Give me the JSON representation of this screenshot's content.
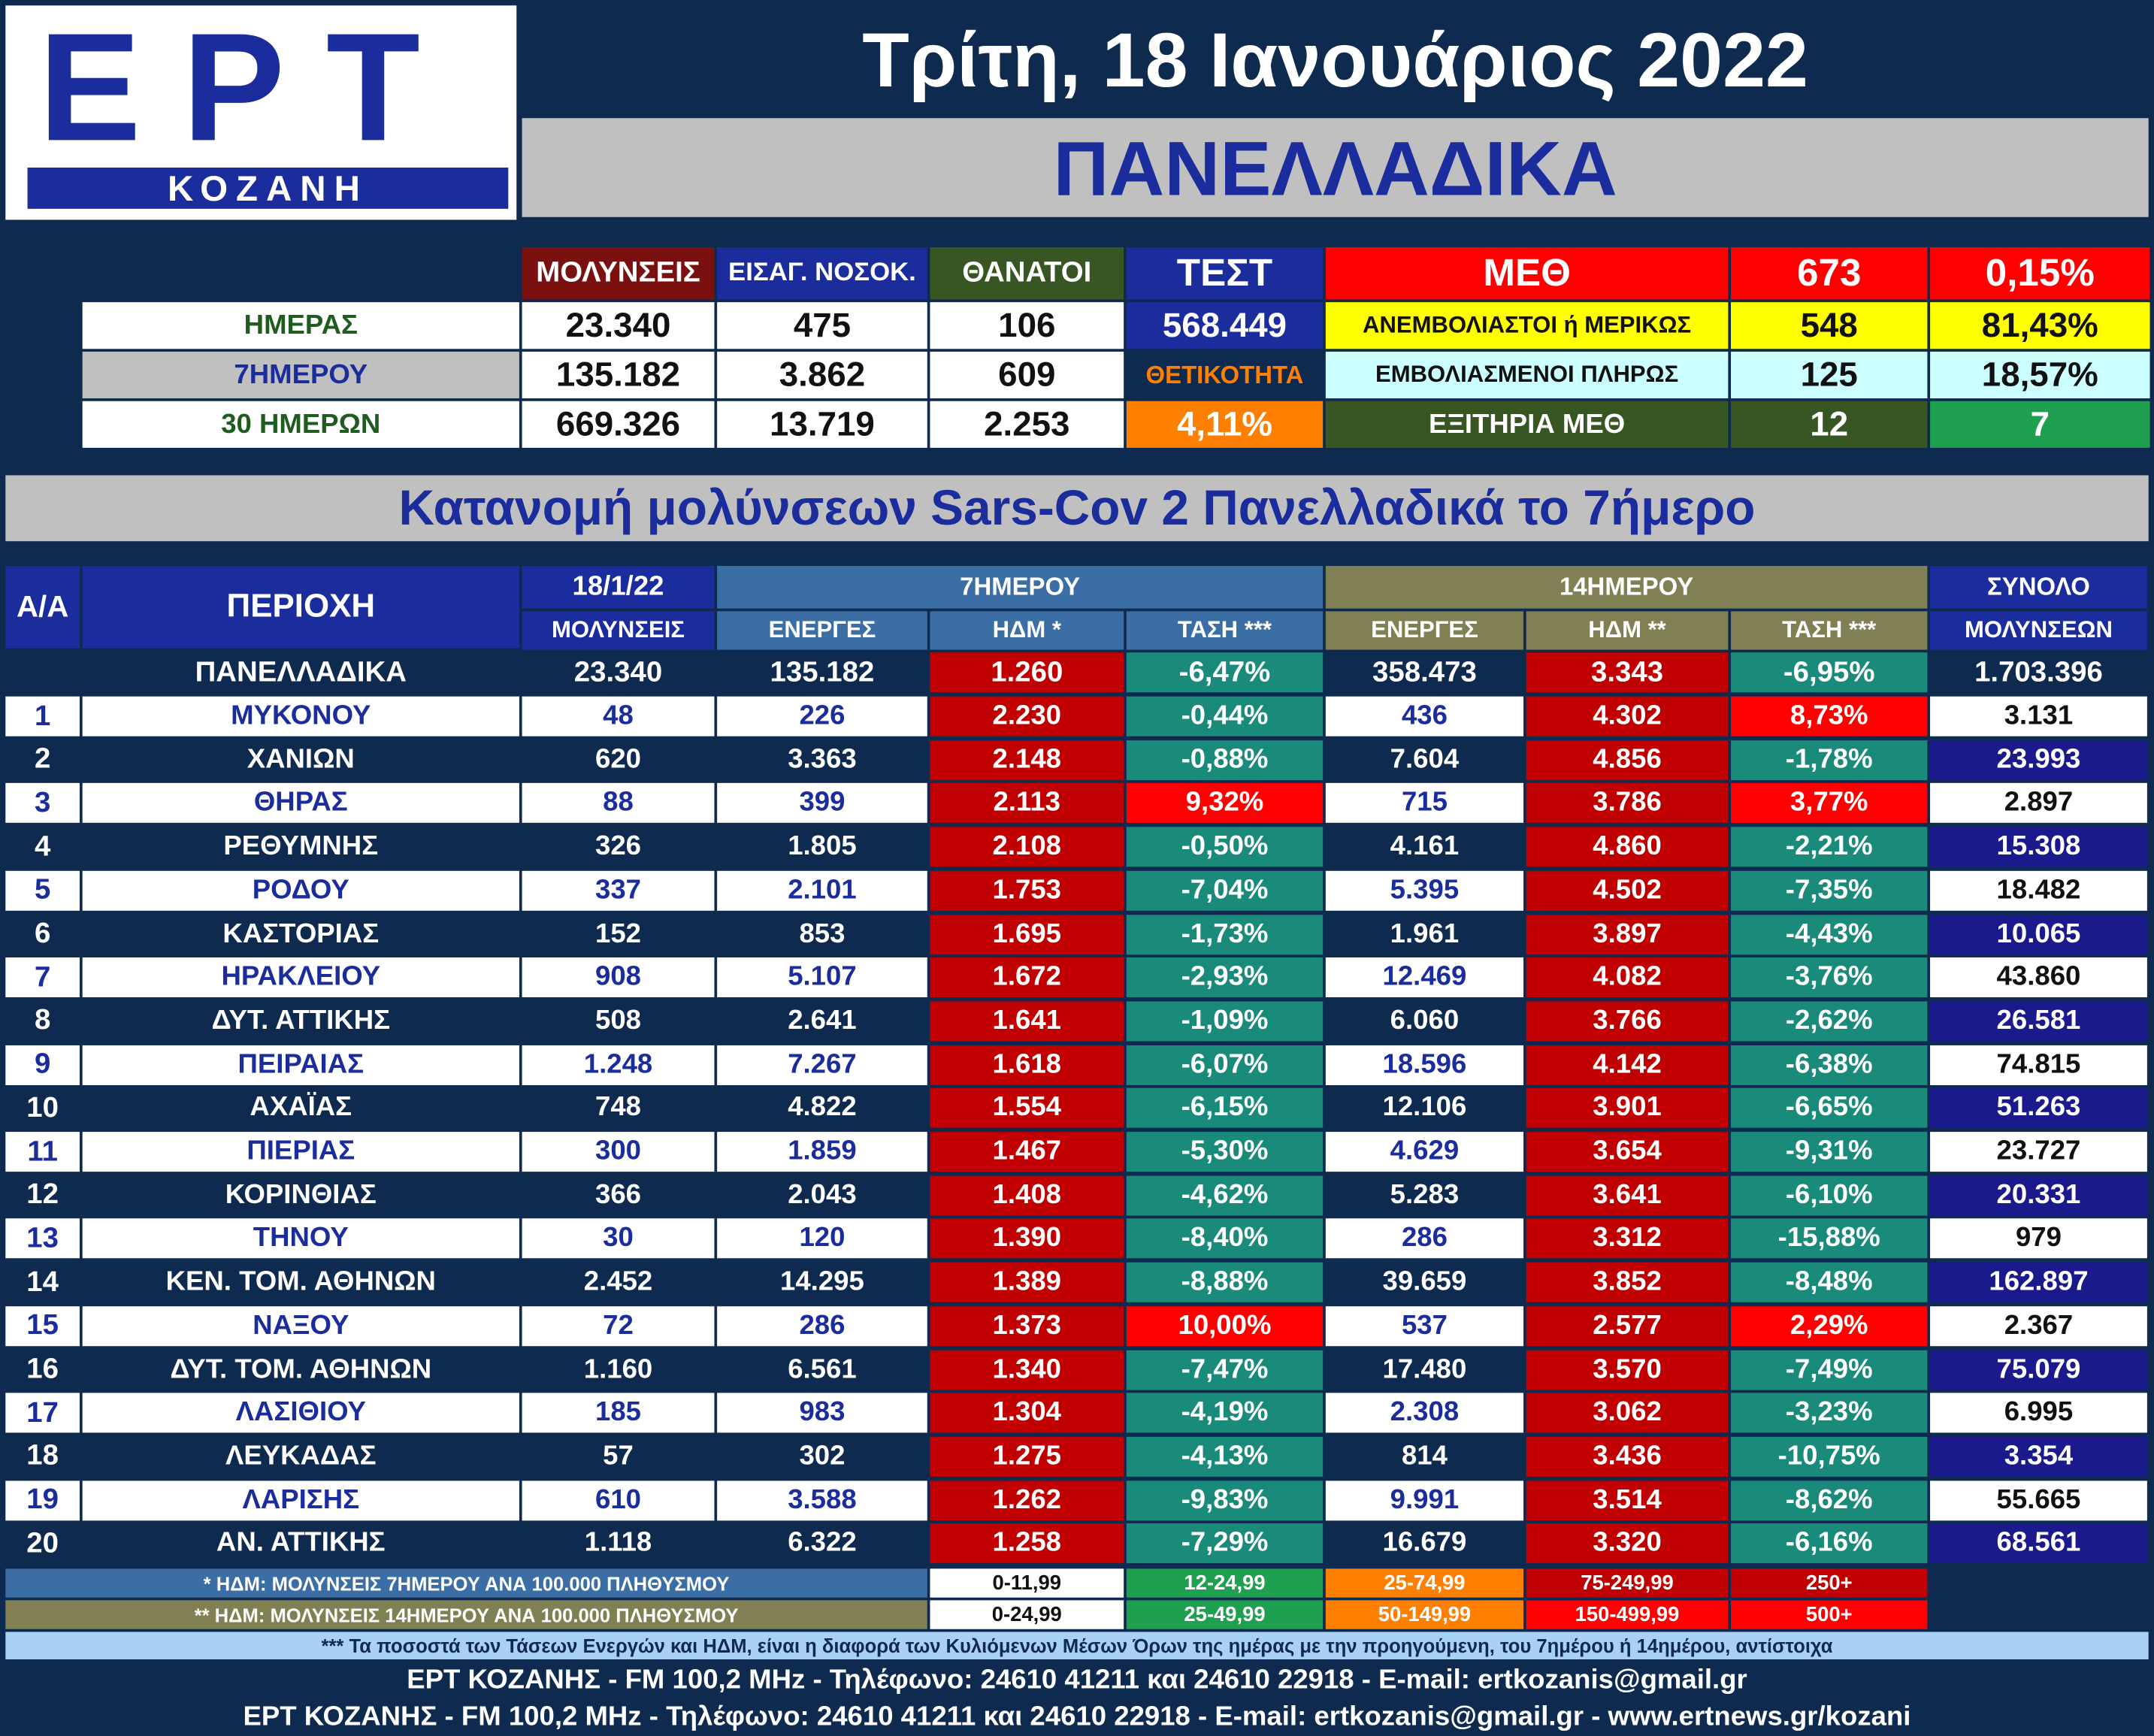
{
  "header": {
    "logo_main": "ΕΡΤ",
    "logo_sub": "ΚΟΖΑΝΗ",
    "date": "Τρίτη, 18 Ιανουάριος 2022",
    "region": "ΠΑΝΕΛΛΑΔΙΚΑ"
  },
  "colors": {
    "navy": "#0f2a4f",
    "blue": "#1b2d9c",
    "red": "#c00000",
    "teal": "#1a8a7a",
    "bright_red": "#ff0000",
    "yellow": "#ffff00",
    "light_blue": "#ccffff",
    "olive": "#808054",
    "steel": "#3a6ea5",
    "dark_green": "#375623",
    "green": "#1fa050",
    "orange": "#ff7f00"
  },
  "summary": {
    "col_headers": [
      "ΜΟΛΥΝΣΕΙΣ",
      "ΕΙΣΑΓ. ΝΟΣΟΚ.",
      "ΘΑΝΑΤΟΙ",
      "ΤΕΣΤ"
    ],
    "rows": [
      {
        "label": "ΗΜΕΡΑΣ",
        "values": [
          "23.340",
          "475",
          "106"
        ]
      },
      {
        "label": "7ΗΜΕΡΟΥ",
        "values": [
          "135.182",
          "3.862",
          "609"
        ]
      },
      {
        "label": "30 ΗΜΕΡΩΝ",
        "values": [
          "669.326",
          "13.719",
          "2.253"
        ]
      }
    ],
    "test_value": "568.449",
    "positivity_label": "ΘΕΤΙΚΟΤΗΤΑ",
    "positivity_value": "4,11%",
    "icu": {
      "label": "ΜΕΘ",
      "total": "673",
      "total_pct": "0,15%",
      "rows": [
        {
          "label": "ΑΝΕΜΒΟΛΙΑΣΤΟΙ ή ΜΕΡΙΚΩΣ",
          "value": "548",
          "pct": "81,43%"
        },
        {
          "label": "ΕΜΒΟΛΙΑΣΜΕΝΟΙ ΠΛΗΡΩΣ",
          "value": "125",
          "pct": "18,57%"
        },
        {
          "label": "ΕΞΙΤΗΡΙΑ ΜΕΘ",
          "value": "12",
          "pct": "7"
        }
      ]
    }
  },
  "subtitle": "Κατανομή μολύνσεων Sars-Cov 2 Πανελλαδικά το 7ήμερο",
  "table": {
    "h_aa": "Α/Α",
    "h_area": "ΠΕΡΙΟΧΗ",
    "h_date": "18/1/22",
    "h_7": "7ΗΜΕΡΟΥ",
    "h_14": "14ΗΜΕΡΟΥ",
    "h_total": "ΣΥΝΟΛΟ",
    "sub": [
      "ΜΟΛΥΝΣΕΙΣ",
      "ΕΝΕΡΓΕΣ",
      "ΗΔΜ *",
      "ΤΑΣΗ ***",
      "ΕΝΕΡΓΕΣ",
      "ΗΔΜ **",
      "ΤΑΣΗ ***",
      "ΜΟΛΥΝΣΕΩΝ"
    ],
    "total_row": {
      "area": "ΠΑΝΕΛΛΑΔΙΚΑ",
      "v": [
        "23.340",
        "135.182",
        "1.260",
        "-6,47%",
        "358.473",
        "3.343",
        "-6,95%",
        "1.703.396"
      ]
    },
    "rows": [
      {
        "n": "1",
        "area": "ΜΥΚΟΝΟΥ",
        "v": [
          "48",
          "226",
          "2.230",
          "-0,44%",
          "436",
          "4.302",
          "8,73%",
          "3.131"
        ]
      },
      {
        "n": "2",
        "area": "ΧΑΝΙΩΝ",
        "v": [
          "620",
          "3.363",
          "2.148",
          "-0,88%",
          "7.604",
          "4.856",
          "-1,78%",
          "23.993"
        ]
      },
      {
        "n": "3",
        "area": "ΘΗΡΑΣ",
        "v": [
          "88",
          "399",
          "2.113",
          "9,32%",
          "715",
          "3.786",
          "3,77%",
          "2.897"
        ]
      },
      {
        "n": "4",
        "area": "ΡΕΘΥΜΝΗΣ",
        "v": [
          "326",
          "1.805",
          "2.108",
          "-0,50%",
          "4.161",
          "4.860",
          "-2,21%",
          "15.308"
        ]
      },
      {
        "n": "5",
        "area": "ΡΟΔΟΥ",
        "v": [
          "337",
          "2.101",
          "1.753",
          "-7,04%",
          "5.395",
          "4.502",
          "-7,35%",
          "18.482"
        ]
      },
      {
        "n": "6",
        "area": "ΚΑΣΤΟΡΙΑΣ",
        "v": [
          "152",
          "853",
          "1.695",
          "-1,73%",
          "1.961",
          "3.897",
          "-4,43%",
          "10.065"
        ]
      },
      {
        "n": "7",
        "area": "ΗΡΑΚΛΕΙΟΥ",
        "v": [
          "908",
          "5.107",
          "1.672",
          "-2,93%",
          "12.469",
          "4.082",
          "-3,76%",
          "43.860"
        ]
      },
      {
        "n": "8",
        "area": "ΔΥΤ. ΑΤΤΙΚΗΣ",
        "v": [
          "508",
          "2.641",
          "1.641",
          "-1,09%",
          "6.060",
          "3.766",
          "-2,62%",
          "26.581"
        ]
      },
      {
        "n": "9",
        "area": "ΠΕΙΡΑΙΑΣ",
        "v": [
          "1.248",
          "7.267",
          "1.618",
          "-6,07%",
          "18.596",
          "4.142",
          "-6,38%",
          "74.815"
        ]
      },
      {
        "n": "10",
        "area": "ΑΧΑΪΑΣ",
        "v": [
          "748",
          "4.822",
          "1.554",
          "-6,15%",
          "12.106",
          "3.901",
          "-6,65%",
          "51.263"
        ]
      },
      {
        "n": "11",
        "area": "ΠΙΕΡΙΑΣ",
        "v": [
          "300",
          "1.859",
          "1.467",
          "-5,30%",
          "4.629",
          "3.654",
          "-9,31%",
          "23.727"
        ]
      },
      {
        "n": "12",
        "area": "ΚΟΡΙΝΘΙΑΣ",
        "v": [
          "366",
          "2.043",
          "1.408",
          "-4,62%",
          "5.283",
          "3.641",
          "-6,10%",
          "20.331"
        ]
      },
      {
        "n": "13",
        "area": "ΤΗΝΟΥ",
        "v": [
          "30",
          "120",
          "1.390",
          "-8,40%",
          "286",
          "3.312",
          "-15,88%",
          "979"
        ]
      },
      {
        "n": "14",
        "area": "ΚΕΝ. ΤΟΜ. ΑΘΗΝΩΝ",
        "v": [
          "2.452",
          "14.295",
          "1.389",
          "-8,88%",
          "39.659",
          "3.852",
          "-8,48%",
          "162.897"
        ]
      },
      {
        "n": "15",
        "area": "ΝΑΞΟΥ",
        "v": [
          "72",
          "286",
          "1.373",
          "10,00%",
          "537",
          "2.577",
          "2,29%",
          "2.367"
        ]
      },
      {
        "n": "16",
        "area": "ΔΥΤ. ΤΟΜ. ΑΘΗΝΩΝ",
        "v": [
          "1.160",
          "6.561",
          "1.340",
          "-7,47%",
          "17.480",
          "3.570",
          "-7,49%",
          "75.079"
        ]
      },
      {
        "n": "17",
        "area": "ΛΑΣΙΘΙΟΥ",
        "v": [
          "185",
          "983",
          "1.304",
          "-4,19%",
          "2.308",
          "3.062",
          "-3,23%",
          "6.995"
        ]
      },
      {
        "n": "18",
        "area": "ΛΕΥΚΑΔΑΣ",
        "v": [
          "57",
          "302",
          "1.275",
          "-4,13%",
          "814",
          "3.436",
          "-10,75%",
          "3.354"
        ]
      },
      {
        "n": "19",
        "area": "ΛΑΡΙΣΗΣ",
        "v": [
          "610",
          "3.588",
          "1.262",
          "-9,83%",
          "9.991",
          "3.514",
          "-8,62%",
          "55.665"
        ]
      },
      {
        "n": "20",
        "area": "ΑΝ. ΑΤΤΙΚΗΣ",
        "v": [
          "1.118",
          "6.322",
          "1.258",
          "-7,29%",
          "16.679",
          "3.320",
          "-6,16%",
          "68.561"
        ]
      }
    ]
  },
  "legend": {
    "row1_label": "* ΗΔΜ: ΜΟΛΥΝΣΕΙΣ 7ΗΜΕΡΟΥ ΑΝΑ 100.000 ΠΛΗΘΥΣΜΟΥ",
    "row1": [
      "0-11,99",
      "12-24,99",
      "25-74,99",
      "75-249,99",
      "250+"
    ],
    "row2_label": "** ΗΔΜ: ΜΟΛΥΝΣΕΙΣ 14ΗΜΕΡΟΥ ΑΝΑ 100.000 ΠΛΗΘΥΣΜΟΥ",
    "row2": [
      "0-24,99",
      "25-49,99",
      "50-149,99",
      "150-499,99",
      "500+"
    ],
    "note": "*** Τα ποσοστά των Τάσεων Ενεργών και ΗΔΜ, είναι η διαφορά των Κυλιόμενων Μέσων Όρων της ημέρας με την προηγούμενη, του 7ημέρου ή 14ημέρου, αντίστοιχα"
  },
  "footer": {
    "line1": "ΕΡΤ ΚΟΖΑΝΗΣ - FM 100,2 MHz - Τηλέφωνο:  24610 41211 και 24610 22918 - E-mail: ertkozanis@gmail.gr",
    "line2": "ΕΡΤ ΚΟΖΑΝΗΣ - FM 100,2 MHz - Τηλέφωνο:  24610 41211 και 24610 22918 - E-mail: ertkozanis@gmail.gr - www.ertnews.gr/kozani"
  }
}
